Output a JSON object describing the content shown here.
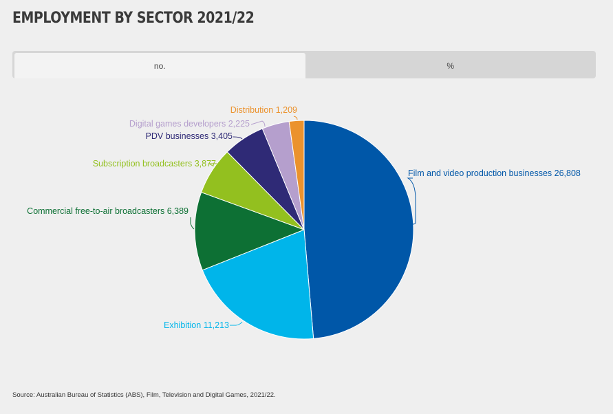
{
  "title": "EMPLOYMENT BY SECTOR 2021/22",
  "tabs": [
    {
      "label": "no.",
      "active": true
    },
    {
      "label": "%",
      "active": false
    }
  ],
  "source": "Source: Australian Bureau of Statistics (ABS), Film, Television and Digital Games, 2021/22.",
  "chart_data": {
    "type": "pie",
    "title": "EMPLOYMENT BY SECTOR 2021/22",
    "slices": [
      {
        "name": "Film and video production businesses",
        "value": 26808,
        "label": "Film and video production businesses 26,808",
        "color": "#0057a8"
      },
      {
        "name": "Exhibition",
        "value": 11213,
        "label": "Exhibition 11,213",
        "color": "#00b5ea"
      },
      {
        "name": "Commercial free-to-air broadcasters",
        "value": 6389,
        "label": "Commercial free-to-air broadcasters 6,389",
        "color": "#0d7034"
      },
      {
        "name": "Subscription broadcasters",
        "value": 3877,
        "label": "Subscription broadcasters 3,877",
        "color": "#93c01f"
      },
      {
        "name": "PDV businesses",
        "value": 3405,
        "label": "PDV businesses 3,405",
        "color": "#2f2a76"
      },
      {
        "name": "Digital games developers",
        "value": 2225,
        "label": "Digital games developers 2,225",
        "color": "#b59fcd"
      },
      {
        "name": "Distribution",
        "value": 1209,
        "label": "Distribution 1,209",
        "color": "#eb922d"
      }
    ]
  }
}
